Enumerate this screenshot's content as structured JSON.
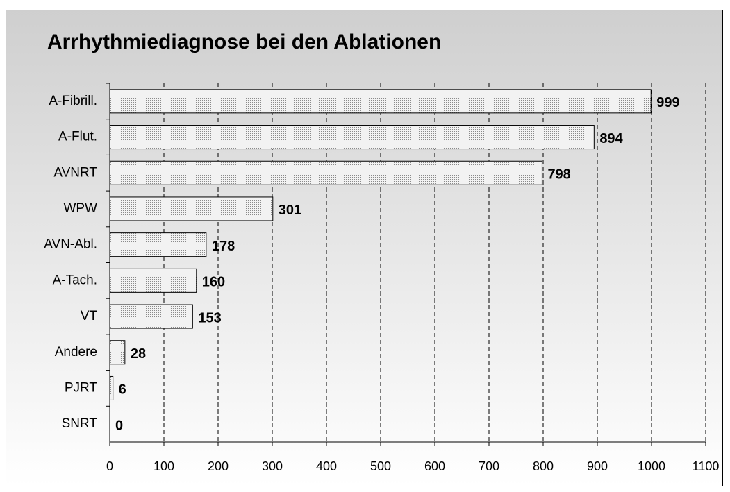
{
  "chart_data": {
    "type": "bar",
    "orientation": "horizontal",
    "title": "Arrhythmiediagnose bei den Ablationen",
    "categories": [
      "A-Fibrill.",
      "A-Flut.",
      "AVNRT",
      "WPW",
      "AVN-Abl.",
      "A-Tach.",
      "VT",
      "Andere",
      "PJRT",
      "SNRT"
    ],
    "values": [
      999,
      894,
      798,
      301,
      178,
      160,
      153,
      28,
      6,
      0
    ],
    "color": "#d9d9d9",
    "xlim": [
      0,
      1100
    ],
    "xticks": [
      0,
      100,
      200,
      300,
      400,
      500,
      600,
      700,
      800,
      900,
      1000,
      1100
    ],
    "grid": true
  }
}
